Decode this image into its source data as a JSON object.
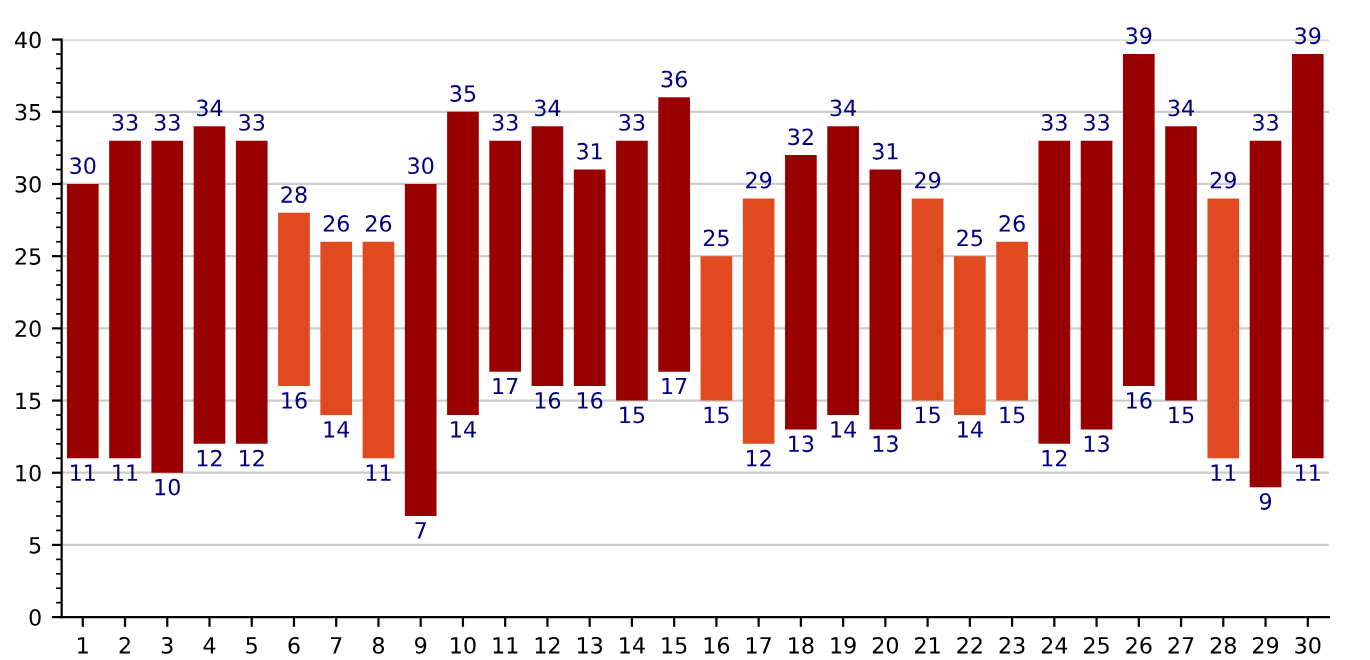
{
  "chart_data": {
    "type": "bar",
    "categories": [
      "1",
      "2",
      "3",
      "4",
      "5",
      "6",
      "7",
      "8",
      "9",
      "10",
      "11",
      "12",
      "13",
      "14",
      "15",
      "16",
      "17",
      "18",
      "19",
      "20",
      "21",
      "22",
      "23",
      "24",
      "25",
      "26",
      "27",
      "28",
      "29",
      "30"
    ],
    "base": [
      11,
      11,
      10,
      12,
      12,
      16,
      14,
      11,
      7,
      14,
      17,
      16,
      16,
      15,
      17,
      15,
      12,
      13,
      14,
      13,
      15,
      14,
      15,
      12,
      13,
      16,
      15,
      11,
      9,
      11
    ],
    "values": [
      19,
      22,
      23,
      22,
      21,
      12,
      12,
      15,
      23,
      21,
      16,
      18,
      15,
      18,
      19,
      10,
      17,
      19,
      20,
      18,
      14,
      11,
      11,
      21,
      20,
      23,
      19,
      18,
      24,
      28
    ],
    "colors": [
      "#990000",
      "#990000",
      "#990000",
      "#990000",
      "#990000",
      "#e04a1f",
      "#e04a1f",
      "#e04a1f",
      "#990000",
      "#990000",
      "#990000",
      "#990000",
      "#990000",
      "#990000",
      "#990000",
      "#e04a1f",
      "#e04a1f",
      "#990000",
      "#990000",
      "#990000",
      "#e04a1f",
      "#e04a1f",
      "#e04a1f",
      "#990000",
      "#990000",
      "#990000",
      "#990000",
      "#e04a1f",
      "#990000",
      "#990000"
    ],
    "ylim": [
      0,
      40
    ],
    "yticks": [
      0,
      5,
      10,
      15,
      20,
      25,
      30,
      35,
      40
    ],
    "grid": "y",
    "annotations": [
      {
        "text": "30",
        "x": "1",
        "y": 30
      },
      {
        "text": "11",
        "x": "1",
        "y": 11
      },
      {
        "text": "33",
        "x": "2",
        "y": 33
      },
      {
        "text": "11",
        "x": "2",
        "y": 11
      },
      {
        "text": "33",
        "x": "3",
        "y": 33
      },
      {
        "text": "10",
        "x": "3",
        "y": 10
      },
      {
        "text": "34",
        "x": "4",
        "y": 34
      },
      {
        "text": "12",
        "x": "4",
        "y": 12
      },
      {
        "text": "33",
        "x": "5",
        "y": 33
      },
      {
        "text": "12",
        "x": "5",
        "y": 12
      },
      {
        "text": "28",
        "x": "6",
        "y": 28
      },
      {
        "text": "16",
        "x": "6",
        "y": 16
      },
      {
        "text": "26",
        "x": "7",
        "y": 26
      },
      {
        "text": "14",
        "x": "7",
        "y": 14
      },
      {
        "text": "26",
        "x": "8",
        "y": 26
      },
      {
        "text": "11",
        "x": "8",
        "y": 11
      },
      {
        "text": "30",
        "x": "9",
        "y": 30
      },
      {
        "text": "7",
        "x": "9",
        "y": 7
      },
      {
        "text": "35",
        "x": "10",
        "y": 35
      },
      {
        "text": "14",
        "x": "10",
        "y": 14
      },
      {
        "text": "33",
        "x": "11",
        "y": 33
      },
      {
        "text": "17",
        "x": "11",
        "y": 17
      },
      {
        "text": "34",
        "x": "12",
        "y": 34
      },
      {
        "text": "16",
        "x": "12",
        "y": 16
      },
      {
        "text": "31",
        "x": "13",
        "y": 31
      },
      {
        "text": "16",
        "x": "13",
        "y": 16
      },
      {
        "text": "33",
        "x": "14",
        "y": 33
      },
      {
        "text": "15",
        "x": "14",
        "y": 15
      },
      {
        "text": "36",
        "x": "15",
        "y": 36
      },
      {
        "text": "17",
        "x": "15",
        "y": 17
      },
      {
        "text": "25",
        "x": "16",
        "y": 25
      },
      {
        "text": "15",
        "x": "16",
        "y": 15
      },
      {
        "text": "29",
        "x": "17",
        "y": 29
      },
      {
        "text": "12",
        "x": "17",
        "y": 12
      },
      {
        "text": "32",
        "x": "18",
        "y": 32
      },
      {
        "text": "13",
        "x": "18",
        "y": 13
      },
      {
        "text": "34",
        "x": "19",
        "y": 34
      },
      {
        "text": "14",
        "x": "19",
        "y": 14
      },
      {
        "text": "31",
        "x": "20",
        "y": 31
      },
      {
        "text": "13",
        "x": "20",
        "y": 13
      },
      {
        "text": "29",
        "x": "21",
        "y": 29
      },
      {
        "text": "15",
        "x": "21",
        "y": 15
      },
      {
        "text": "25",
        "x": "22",
        "y": 25
      },
      {
        "text": "14",
        "x": "22",
        "y": 14
      },
      {
        "text": "26",
        "x": "23",
        "y": 26
      },
      {
        "text": "15",
        "x": "23",
        "y": 15
      },
      {
        "text": "33",
        "x": "24",
        "y": 33
      },
      {
        "text": "12",
        "x": "24",
        "y": 12
      },
      {
        "text": "33",
        "x": "25",
        "y": 33
      },
      {
        "text": "13",
        "x": "25",
        "y": 13
      },
      {
        "text": "39",
        "x": "26",
        "y": 39
      },
      {
        "text": "16",
        "x": "26",
        "y": 16
      },
      {
        "text": "34",
        "x": "27",
        "y": 34
      },
      {
        "text": "15",
        "x": "27",
        "y": 15
      },
      {
        "text": "29",
        "x": "28",
        "y": 29
      },
      {
        "text": "11",
        "x": "28",
        "y": 11
      },
      {
        "text": "33",
        "x": "29",
        "y": 33
      },
      {
        "text": "9",
        "x": "29",
        "y": 9
      },
      {
        "text": "39",
        "x": "30",
        "y": 39
      },
      {
        "text": "11",
        "x": "30",
        "y": 11
      }
    ]
  }
}
